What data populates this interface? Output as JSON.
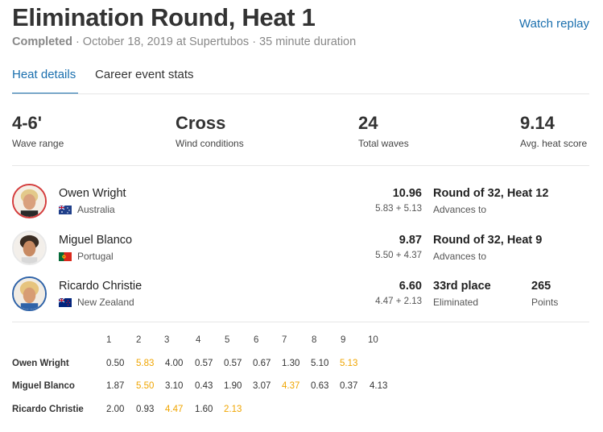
{
  "header": {
    "title": "Elimination Round, Heat 1",
    "watch_replay": "Watch replay",
    "status": "Completed",
    "meta": " · October 18, 2019 at Supertubos · 35 minute duration"
  },
  "tabs": [
    {
      "label": "Heat details",
      "active": true
    },
    {
      "label": "Career event stats",
      "active": false
    }
  ],
  "stats": [
    {
      "value": "4-6'",
      "label": "Wave range"
    },
    {
      "value": "Cross",
      "label": "Wind conditions"
    },
    {
      "value": "24",
      "label": "Total waves"
    },
    {
      "value": "9.14",
      "label": "Avg. heat score"
    }
  ],
  "athletes": [
    {
      "name": "Owen Wright",
      "country": "Australia",
      "flag": "australia-flag",
      "total": "10.96",
      "breakdown": "5.83 + 5.13",
      "result": "Round of 32, Heat 12",
      "result_sub": "Advances to",
      "points": "",
      "points_label": "",
      "jersey_color": "#d43c3c"
    },
    {
      "name": "Miguel Blanco",
      "country": "Portugal",
      "flag": "portugal-flag",
      "total": "9.87",
      "breakdown": "5.50 + 4.37",
      "result": "Round of 32, Heat 9",
      "result_sub": "Advances to",
      "points": "",
      "points_label": "",
      "jersey_color": "#e8e8e8"
    },
    {
      "name": "Ricardo Christie",
      "country": "New Zealand",
      "flag": "new-zealand-flag",
      "total": "6.60",
      "breakdown": "4.47 + 2.13",
      "result": "33rd place",
      "result_sub": "Eliminated",
      "points": "265",
      "points_label": "Points",
      "jersey_color": "#2f63a8"
    }
  ],
  "wave_table": {
    "headers": [
      "1",
      "2",
      "3",
      "4",
      "5",
      "6",
      "7",
      "8",
      "9",
      "10"
    ],
    "counting_color": "#f0a500",
    "rows": [
      {
        "name": "Owen Wright",
        "scores": [
          "0.50",
          "5.83",
          "4.00",
          "0.57",
          "0.57",
          "0.67",
          "1.30",
          "5.10",
          "5.13"
        ],
        "counting": [
          1,
          8
        ]
      },
      {
        "name": "Miguel Blanco",
        "scores": [
          "1.87",
          "5.50",
          "3.10",
          "0.43",
          "1.90",
          "3.07",
          "4.37",
          "0.63",
          "0.37",
          "4.13"
        ],
        "counting": [
          1,
          6
        ]
      },
      {
        "name": "Ricardo Christie",
        "scores": [
          "2.00",
          "0.93",
          "4.47",
          "1.60",
          "2.13"
        ],
        "counting": [
          2,
          4
        ]
      }
    ]
  },
  "colors": {
    "accent": "#1a6fae",
    "counting_wave": "#f0a500"
  }
}
